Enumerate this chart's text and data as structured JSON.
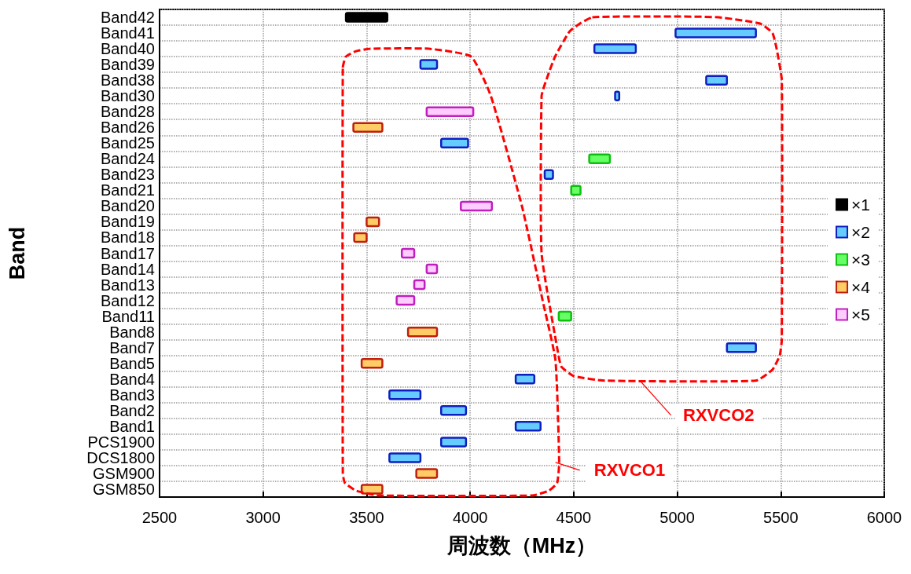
{
  "chart_data": {
    "type": "bar",
    "orientation": "horizontal",
    "xlabel": "周波数（MHz）",
    "ylabel": "Band",
    "categories": [
      "Band42",
      "Band41",
      "Band40",
      "Band39",
      "Band38",
      "Band30",
      "Band28",
      "Band26",
      "Band25",
      "Band24",
      "Band23",
      "Band21",
      "Band20",
      "Band19",
      "Band18",
      "Band17",
      "Band14",
      "Band13",
      "Band12",
      "Band11",
      "Band8",
      "Band7",
      "Band5",
      "Band4",
      "Band3",
      "Band2",
      "Band1",
      "PCS1900",
      "DCS1800",
      "GSM900",
      "GSM850"
    ],
    "series": [
      {
        "name": "×1",
        "color": "#000000",
        "base": [
          3400,
          null,
          null,
          null,
          null,
          null,
          null,
          null,
          null,
          null,
          null,
          null,
          null,
          null,
          null,
          null,
          null,
          null,
          null,
          null,
          null,
          null,
          null,
          null,
          null,
          null,
          null,
          null,
          null,
          null,
          null
        ],
        "values": [
          200,
          null,
          null,
          null,
          null,
          null,
          null,
          null,
          null,
          null,
          null,
          null,
          null,
          null,
          null,
          null,
          null,
          null,
          null,
          null,
          null,
          null,
          null,
          null,
          null,
          null,
          null,
          null,
          null,
          null,
          null
        ]
      },
      {
        "name": "×2",
        "color": "#66ccff",
        "base": [
          null,
          4992,
          4600,
          3760,
          5140,
          4700,
          null,
          null,
          3860,
          null,
          4360,
          null,
          null,
          null,
          null,
          null,
          null,
          null,
          null,
          null,
          null,
          5240,
          null,
          4220,
          3610,
          3860,
          4220,
          3860,
          3610,
          null,
          null
        ],
        "values": [
          null,
          388,
          200,
          80,
          100,
          20,
          null,
          null,
          130,
          null,
          40,
          null,
          null,
          null,
          null,
          null,
          null,
          null,
          null,
          null,
          null,
          140,
          null,
          90,
          150,
          120,
          120,
          120,
          150,
          null,
          null
        ]
      },
      {
        "name": "×3",
        "color": "#66ff66",
        "base": [
          null,
          null,
          null,
          null,
          null,
          null,
          null,
          null,
          null,
          4575,
          null,
          4488,
          null,
          null,
          null,
          null,
          null,
          null,
          null,
          4428,
          null,
          null,
          null,
          null,
          null,
          null,
          null,
          null,
          null,
          null,
          null
        ],
        "values": [
          null,
          null,
          null,
          null,
          null,
          null,
          null,
          null,
          null,
          100,
          null,
          45,
          null,
          null,
          null,
          null,
          null,
          null,
          null,
          60,
          null,
          null,
          null,
          null,
          null,
          null,
          null,
          null,
          null,
          null,
          null
        ]
      },
      {
        "name": "×4",
        "color": "#ffcc66",
        "base": [
          null,
          null,
          null,
          null,
          null,
          null,
          null,
          3436,
          null,
          null,
          null,
          null,
          null,
          3500,
          3440,
          null,
          null,
          null,
          null,
          null,
          3700,
          null,
          3476,
          null,
          null,
          null,
          null,
          null,
          null,
          3740,
          3476
        ],
        "values": [
          null,
          null,
          null,
          null,
          null,
          null,
          null,
          140,
          null,
          null,
          null,
          null,
          null,
          60,
          60,
          null,
          null,
          null,
          null,
          null,
          140,
          null,
          100,
          null,
          null,
          null,
          null,
          null,
          null,
          100,
          100
        ]
      },
      {
        "name": "×5",
        "color": "#ffccff",
        "base": [
          null,
          null,
          null,
          null,
          null,
          null,
          3790,
          null,
          null,
          null,
          null,
          null,
          3955,
          null,
          null,
          3670,
          3790,
          3730,
          3645,
          null,
          null,
          null,
          null,
          null,
          null,
          null,
          null,
          null,
          null,
          null,
          null
        ],
        "values": [
          null,
          null,
          null,
          null,
          null,
          null,
          225,
          null,
          null,
          null,
          null,
          null,
          150,
          null,
          null,
          60,
          50,
          50,
          85,
          null,
          null,
          null,
          null,
          null,
          null,
          null,
          null,
          null,
          null,
          null,
          null
        ]
      }
    ],
    "xlim": [
      2500,
      6000
    ],
    "xticks": [
      2500,
      3000,
      3500,
      4000,
      4500,
      5000,
      5500,
      6000
    ],
    "grid": true,
    "legend": "right",
    "annotations": [
      "RXVCO1",
      "RXVCO2"
    ]
  }
}
